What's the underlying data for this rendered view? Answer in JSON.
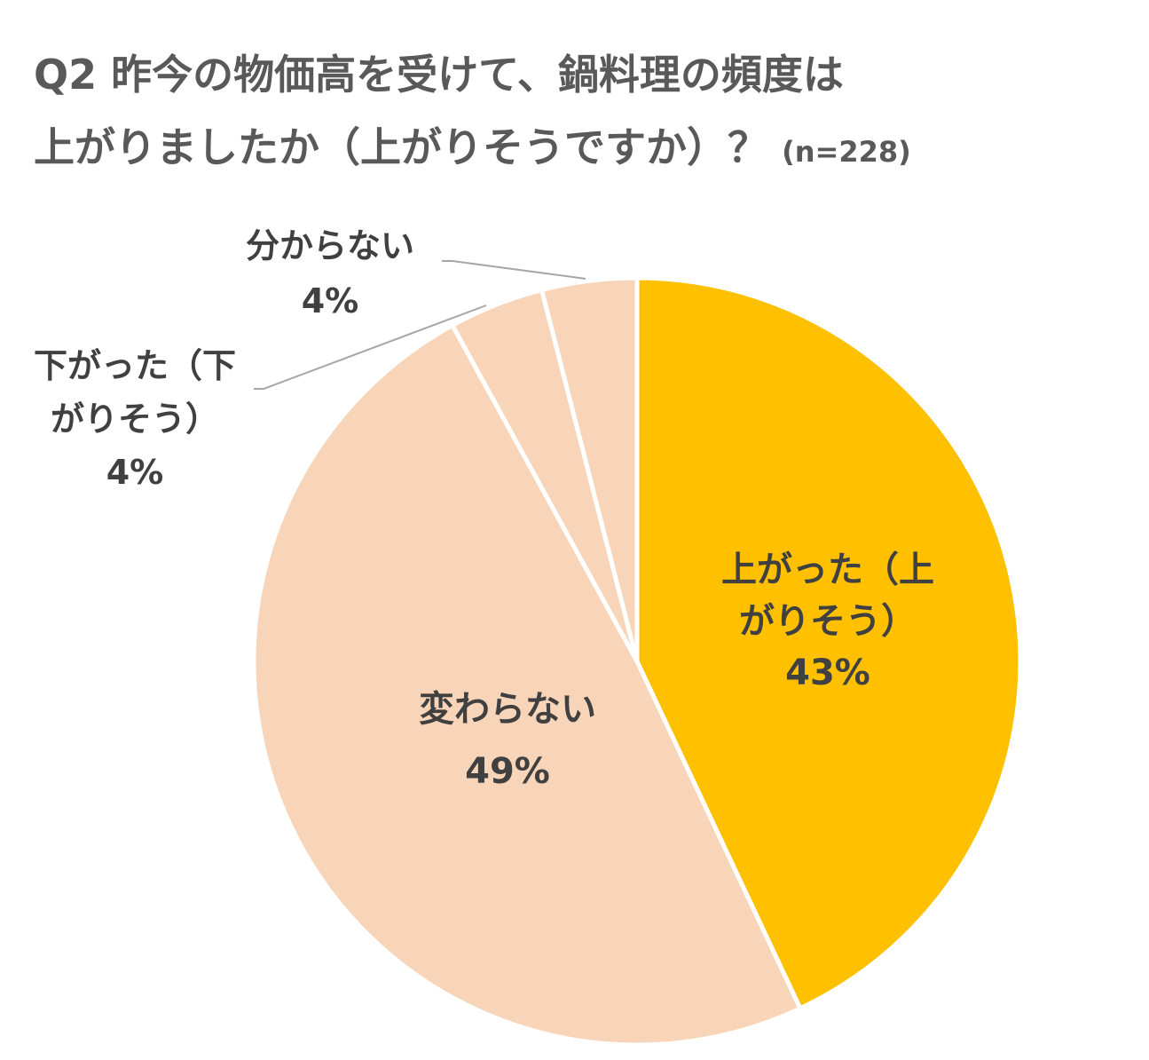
{
  "chart_data": {
    "type": "pie",
    "title_line1": "Q2 昨今の物価高を受けて、鍋料理の頻度は",
    "title_line2": "上がりましたか（上がりそうですか）？",
    "sample_size": "(n=228)",
    "start_angle_deg": 0,
    "direction": "clockwise",
    "slices": [
      {
        "label_lines": [
          "上がった（上",
          "がりそう）"
        ],
        "value": 43,
        "value_label": "43%",
        "color": "#FFC000"
      },
      {
        "label_lines": [
          "変わらない"
        ],
        "value": 49,
        "value_label": "49%",
        "color": "#F8D5B8"
      },
      {
        "label_lines": [
          "下がった（下",
          "がりそう）"
        ],
        "value": 4,
        "value_label": "4%",
        "color": "#F8D5B8"
      },
      {
        "label_lines": [
          "分からない"
        ],
        "value": 4,
        "value_label": "4%",
        "color": "#F8D5B8"
      }
    ],
    "slice_border_color": "#FFFFFF",
    "leader_line_color": "#A6A6A6"
  }
}
